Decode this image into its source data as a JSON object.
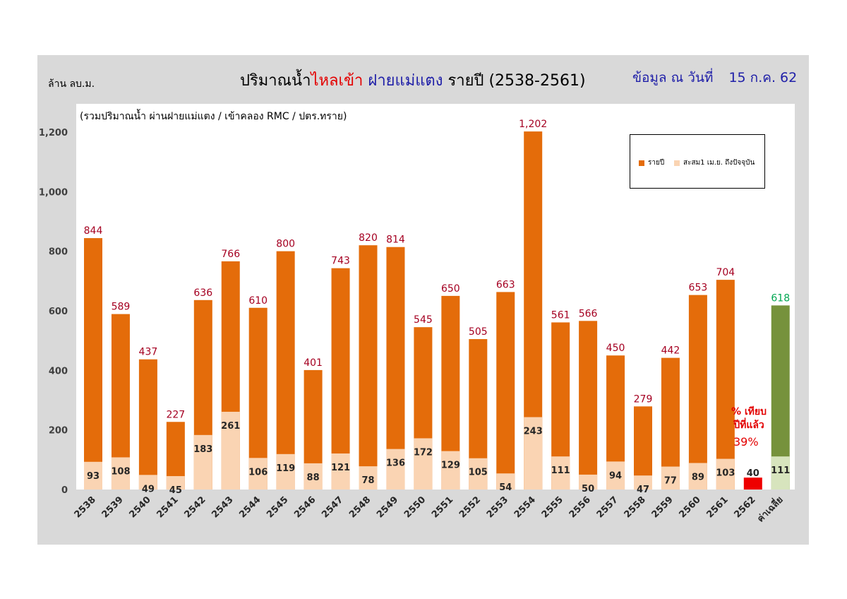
{
  "unit_label": "ล้าน ลบ.ม.",
  "title": {
    "part1": "ปริมาณน้ำ",
    "part2": "ไหลเข้า",
    "part3": "ฝายแม่แตง",
    "part4": "รายปี  (2538-2561)"
  },
  "as_of": {
    "label": "ข้อมูล ณ วันที่",
    "date": "15 ก.ค. 62"
  },
  "subtitle": "(รวมปริมาณน้ำ ผ่านฝายแม่แตง / เข้าคลอง RMC / ปตร.ทราย)",
  "legend": {
    "annual": "รายปี",
    "cumulative": "สะสม1 เม.ย. ถึงปัจจุบัน"
  },
  "annotation": {
    "line1": "% เทียบ",
    "line2": "ปีที่แล้ว",
    "value": "39%"
  },
  "colors": {
    "annual": "#e46c0a",
    "cumulative": "#fad4b3",
    "current_year": "#ee0000",
    "avg_annual": "#76923c",
    "avg_cumulative": "#d7e4bd",
    "value_label_annual": "#a50021",
    "value_label_avg": "#00a651"
  },
  "chart_data": {
    "type": "bar",
    "categories": [
      "2538",
      "2539",
      "2540",
      "2541",
      "2542",
      "2543",
      "2544",
      "2545",
      "2546",
      "2547",
      "2548",
      "2549",
      "2550",
      "2551",
      "2552",
      "2553",
      "2554",
      "2555",
      "2556",
      "2557",
      "2558",
      "2559",
      "2560",
      "2561",
      "2562",
      "ค่าเฉลี่ย"
    ],
    "series": [
      {
        "name": "รายปี",
        "values": [
          844,
          589,
          437,
          227,
          636,
          766,
          610,
          800,
          401,
          743,
          820,
          814,
          545,
          650,
          505,
          663,
          1202,
          561,
          566,
          450,
          279,
          442,
          653,
          704,
          null,
          618
        ]
      },
      {
        "name": "สะสม1 เม.ย. ถึงปัจจุบัน",
        "values": [
          93,
          108,
          49,
          45,
          183,
          261,
          106,
          119,
          88,
          121,
          78,
          136,
          172,
          129,
          105,
          54,
          243,
          111,
          50,
          94,
          47,
          77,
          89,
          103,
          40,
          111
        ]
      }
    ],
    "annual_labels": [
      "844",
      "589",
      "437",
      "227",
      "636",
      "766",
      "610",
      "800",
      "401",
      "743",
      "820",
      "814",
      "545",
      "650",
      "505",
      "663",
      "1,202",
      "561",
      "566",
      "450",
      "279",
      "442",
      "653",
      "704",
      "",
      "618"
    ],
    "ylim": [
      0,
      1300
    ],
    "yticks": [
      0,
      200,
      400,
      600,
      800,
      1000,
      1200
    ],
    "ytick_labels": [
      "0",
      "200",
      "400",
      "600",
      "800",
      "1,000",
      "1,200"
    ],
    "legend_position": "top-right",
    "grid": false
  }
}
